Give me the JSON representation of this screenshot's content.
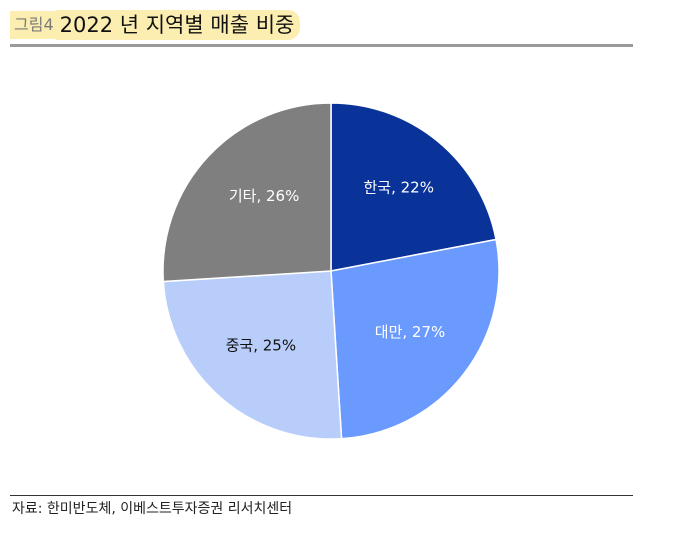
{
  "header": {
    "figure_tag": "그림4",
    "title": "2022 년 지역별 매출 비중"
  },
  "chart_data": {
    "type": "pie",
    "title": "2022 년 지역별 매출 비중",
    "labels": [
      "한국",
      "대만",
      "중국",
      "기타"
    ],
    "values": [
      22,
      27,
      25,
      26
    ],
    "unit": "%",
    "colors": [
      "#0a3399",
      "#6b9aff",
      "#b8cdfa",
      "#7f7f7f"
    ],
    "label_colors": [
      "#ffffff",
      "#ffffff",
      "#111111",
      "#ffffff"
    ],
    "start_angle_deg": 0,
    "direction": "clockwise"
  },
  "footer": {
    "source": "자료: 한미반도체, 이베스트투자증권 리서치센터"
  }
}
